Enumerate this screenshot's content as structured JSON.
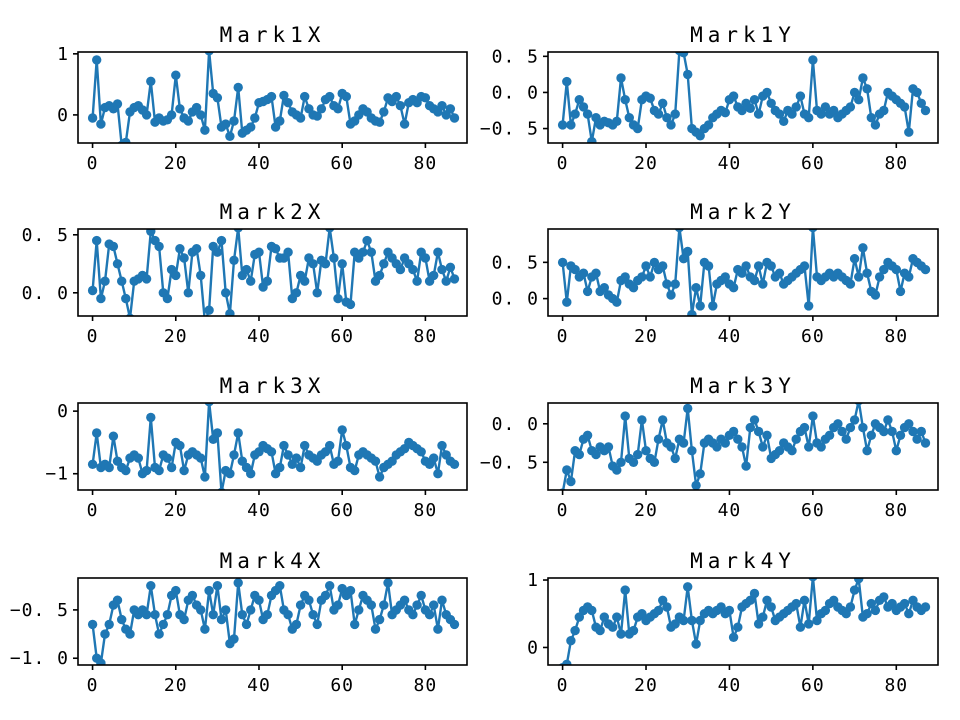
{
  "figure": {
    "background": "#ffffff",
    "series_color": "#1f77b4",
    "frame_color": "#000000",
    "xlim": [
      -3.5,
      90
    ],
    "xtick_values": [
      0,
      20,
      40,
      60,
      80
    ],
    "xtick_labels": [
      "0",
      "20",
      "40",
      "60",
      "80"
    ]
  },
  "chart_data": [
    {
      "type": "line",
      "title": "Mark1X",
      "marker": "circle",
      "color": "#1f77b4",
      "x_start": 0,
      "x_step": 1,
      "ylim": [
        -0.46,
        1.03
      ],
      "ytick_values": [
        1,
        0
      ],
      "ytick_labels": [
        "1",
        "0"
      ],
      "values": [
        -0.05,
        0.9,
        -0.15,
        0.12,
        0.15,
        0.1,
        0.18,
        -0.5,
        -0.45,
        0.05,
        0.12,
        0.15,
        0.08,
        0.0,
        0.55,
        -0.12,
        -0.05,
        -0.1,
        -0.08,
        0.0,
        0.65,
        0.1,
        -0.05,
        -0.1,
        0.05,
        0.12,
        0.0,
        -0.25,
        1.05,
        0.35,
        0.28,
        -0.2,
        -0.15,
        -0.35,
        -0.1,
        0.45,
        -0.3,
        -0.25,
        -0.2,
        -0.05,
        0.2,
        0.22,
        0.25,
        0.3,
        -0.2,
        -0.1,
        0.32,
        0.2,
        0.05,
        0.0,
        -0.05,
        0.3,
        0.1,
        0.0,
        -0.02,
        0.1,
        0.25,
        0.3,
        0.15,
        0.1,
        0.35,
        0.3,
        -0.15,
        -0.1,
        0.0,
        0.1,
        0.05,
        -0.05,
        -0.1,
        -0.12,
        0.05,
        0.28,
        0.22,
        0.3,
        0.15,
        -0.15,
        0.2,
        0.25,
        0.2,
        0.3,
        0.28,
        0.15,
        0.1,
        0.05,
        0.15,
        0.0,
        0.1,
        -0.05
      ]
    },
    {
      "type": "line",
      "title": "Mark1Y",
      "marker": "circle",
      "color": "#1f77b4",
      "x_start": 0,
      "x_step": 1,
      "ylim": [
        -0.7,
        0.56
      ],
      "ytick_values": [
        0.5,
        0.0,
        -0.5
      ],
      "ytick_labels": [
        "0. 5",
        "0. 0",
        "−0. 5"
      ],
      "values": [
        -0.45,
        0.15,
        -0.45,
        -0.3,
        -0.1,
        -0.2,
        -0.3,
        -0.68,
        -0.35,
        -0.45,
        -0.4,
        -0.42,
        -0.45,
        -0.4,
        0.2,
        -0.1,
        -0.35,
        -0.45,
        -0.5,
        -0.1,
        -0.05,
        -0.08,
        -0.25,
        -0.3,
        -0.15,
        -0.35,
        -0.45,
        -0.3,
        0.58,
        0.55,
        0.25,
        -0.5,
        -0.55,
        -0.6,
        -0.5,
        -0.45,
        -0.35,
        -0.3,
        -0.25,
        -0.28,
        -0.1,
        -0.05,
        -0.2,
        -0.25,
        -0.15,
        -0.22,
        -0.1,
        -0.3,
        -0.05,
        0.0,
        -0.15,
        -0.25,
        -0.3,
        -0.4,
        -0.25,
        -0.3,
        -0.2,
        -0.05,
        -0.3,
        -0.35,
        0.45,
        -0.25,
        -0.3,
        -0.2,
        -0.3,
        -0.25,
        -0.35,
        -0.3,
        -0.25,
        -0.2,
        0.0,
        -0.1,
        0.2,
        0.05,
        -0.35,
        -0.45,
        -0.3,
        -0.25,
        0.0,
        -0.05,
        -0.1,
        -0.15,
        -0.2,
        -0.55,
        0.05,
        0.0,
        -0.15,
        -0.25
      ]
    },
    {
      "type": "line",
      "title": "Mark2X",
      "marker": "circle",
      "color": "#1f77b4",
      "x_start": 0,
      "x_step": 1,
      "ylim": [
        -0.2,
        0.55
      ],
      "ytick_values": [
        0.5,
        0.0
      ],
      "ytick_labels": [
        "0. 5",
        "0. 0"
      ],
      "values": [
        0.02,
        0.45,
        -0.05,
        0.1,
        0.42,
        0.4,
        0.25,
        0.1,
        -0.05,
        -0.22,
        0.1,
        0.12,
        0.15,
        0.12,
        0.53,
        0.45,
        0.4,
        0.0,
        -0.05,
        0.2,
        0.15,
        0.38,
        0.3,
        0.0,
        0.35,
        0.38,
        0.15,
        -0.25,
        -0.15,
        0.4,
        0.35,
        0.45,
        0.0,
        -0.18,
        0.28,
        0.56,
        0.15,
        0.2,
        0.1,
        0.33,
        0.35,
        0.05,
        0.1,
        0.4,
        0.38,
        0.3,
        0.3,
        0.35,
        -0.05,
        0.0,
        0.15,
        0.1,
        0.3,
        0.25,
        0.0,
        0.28,
        0.25,
        0.56,
        0.3,
        -0.05,
        0.25,
        -0.08,
        -0.1,
        0.35,
        0.3,
        0.35,
        0.45,
        0.35,
        0.1,
        0.15,
        0.25,
        0.35,
        0.3,
        0.25,
        0.2,
        0.3,
        0.25,
        0.2,
        0.1,
        0.35,
        0.3,
        0.1,
        0.15,
        0.35,
        0.2,
        0.1,
        0.22,
        0.12
      ]
    },
    {
      "type": "line",
      "title": "Mark2Y",
      "marker": "circle",
      "color": "#1f77b4",
      "x_start": 0,
      "x_step": 1,
      "ylim": [
        -0.24,
        0.96
      ],
      "ytick_values": [
        0.5,
        0.0
      ],
      "ytick_labels": [
        "0. 5",
        "0. 0"
      ],
      "values": [
        0.5,
        -0.05,
        0.45,
        0.4,
        0.3,
        0.35,
        0.1,
        0.3,
        0.35,
        0.1,
        0.15,
        0.05,
        0.0,
        -0.05,
        0.25,
        0.3,
        0.2,
        0.15,
        0.25,
        0.3,
        0.45,
        0.3,
        0.5,
        0.4,
        0.45,
        0.2,
        0.05,
        0.2,
        0.98,
        0.55,
        0.65,
        -0.22,
        0.15,
        -0.1,
        0.5,
        0.45,
        -0.1,
        0.2,
        0.25,
        0.3,
        0.2,
        0.15,
        0.4,
        0.35,
        0.45,
        0.3,
        0.25,
        0.45,
        0.2,
        0.5,
        0.45,
        0.3,
        0.35,
        0.2,
        0.25,
        0.3,
        0.35,
        0.4,
        0.45,
        -0.1,
        0.98,
        0.3,
        0.25,
        0.3,
        0.35,
        0.3,
        0.35,
        0.3,
        0.25,
        0.2,
        0.55,
        0.3,
        0.7,
        0.35,
        0.1,
        0.05,
        0.3,
        0.4,
        0.5,
        0.45,
        0.4,
        0.1,
        0.35,
        0.3,
        0.55,
        0.5,
        0.45,
        0.4
      ]
    },
    {
      "type": "line",
      "title": "Mark3X",
      "marker": "circle",
      "color": "#1f77b4",
      "x_start": 0,
      "x_step": 1,
      "ylim": [
        -1.26,
        0.13
      ],
      "ytick_values": [
        0,
        -1
      ],
      "ytick_labels": [
        "0",
        "−1"
      ],
      "values": [
        -0.85,
        -0.35,
        -0.9,
        -0.85,
        -0.9,
        -0.4,
        -0.8,
        -0.9,
        -0.95,
        -0.75,
        -0.7,
        -0.75,
        -1.0,
        -0.95,
        -0.1,
        -0.9,
        -0.95,
        -0.7,
        -0.75,
        -0.9,
        -0.5,
        -0.55,
        -0.95,
        -0.7,
        -0.65,
        -0.7,
        -0.75,
        -1.05,
        0.15,
        -0.45,
        -0.35,
        -1.3,
        -0.95,
        -1.0,
        -0.7,
        -0.35,
        -0.8,
        -0.9,
        -1.0,
        -0.7,
        -0.65,
        -0.55,
        -0.6,
        -0.65,
        -1.0,
        -0.9,
        -0.55,
        -0.7,
        -0.85,
        -0.75,
        -0.9,
        -0.55,
        -0.7,
        -0.75,
        -0.8,
        -0.7,
        -0.65,
        -0.55,
        -0.85,
        -0.8,
        -0.3,
        -0.55,
        -0.9,
        -0.95,
        -0.7,
        -0.65,
        -0.7,
        -0.75,
        -0.8,
        -1.05,
        -0.9,
        -0.85,
        -0.8,
        -0.7,
        -0.65,
        -0.6,
        -0.5,
        -0.55,
        -0.6,
        -0.65,
        -0.8,
        -0.85,
        -0.75,
        -1.0,
        -0.55,
        -0.7,
        -0.8,
        -0.85
      ]
    },
    {
      "type": "line",
      "title": "Mark3Y",
      "marker": "circle",
      "color": "#1f77b4",
      "x_start": 0,
      "x_step": 1,
      "ylim": [
        -0.86,
        0.27
      ],
      "ytick_values": [
        0.0,
        -0.5
      ],
      "ytick_labels": [
        "0. 0",
        "−0. 5"
      ],
      "values": [
        -0.9,
        -0.6,
        -0.75,
        -0.35,
        -0.4,
        -0.2,
        -0.15,
        -0.35,
        -0.4,
        -0.3,
        -0.35,
        -0.3,
        -0.55,
        -0.6,
        -0.5,
        0.1,
        -0.45,
        -0.5,
        -0.4,
        0.05,
        -0.35,
        -0.45,
        -0.5,
        -0.2,
        0.05,
        -0.25,
        -0.3,
        -0.45,
        -0.2,
        -0.25,
        0.2,
        -0.35,
        -0.8,
        -0.65,
        -0.25,
        -0.2,
        -0.25,
        -0.3,
        -0.2,
        -0.25,
        -0.15,
        -0.1,
        -0.2,
        -0.3,
        -0.55,
        -0.05,
        0.05,
        -0.1,
        -0.3,
        -0.15,
        -0.45,
        -0.4,
        -0.35,
        -0.25,
        -0.3,
        -0.35,
        -0.2,
        -0.1,
        -0.05,
        -0.3,
        0.1,
        -0.25,
        -0.3,
        -0.2,
        -0.15,
        -0.05,
        0.0,
        -0.1,
        -0.2,
        -0.05,
        0.05,
        0.3,
        -0.05,
        -0.35,
        -0.15,
        0.0,
        -0.05,
        -0.1,
        0.05,
        -0.1,
        -0.35,
        -0.15,
        -0.05,
        0.0,
        -0.1,
        -0.2,
        -0.1,
        -0.25
      ]
    },
    {
      "type": "line",
      "title": "Mark4X",
      "marker": "circle",
      "color": "#1f77b4",
      "x_start": 0,
      "x_step": 1,
      "ylim": [
        -1.07,
        -0.17
      ],
      "ytick_values": [
        -0.5,
        -1.0
      ],
      "ytick_labels": [
        "−0. 5",
        "−1. 0"
      ],
      "values": [
        -0.65,
        -1.0,
        -1.05,
        -0.75,
        -0.65,
        -0.45,
        -0.4,
        -0.6,
        -0.7,
        -0.75,
        -0.5,
        -0.55,
        -0.5,
        -0.55,
        -0.25,
        -0.55,
        -0.75,
        -0.65,
        -0.55,
        -0.35,
        -0.3,
        -0.55,
        -0.6,
        -0.4,
        -0.35,
        -0.45,
        -0.5,
        -0.7,
        -0.3,
        -0.55,
        -0.25,
        -0.6,
        -0.5,
        -0.85,
        -0.8,
        -0.22,
        -0.55,
        -0.65,
        -0.5,
        -0.35,
        -0.4,
        -0.6,
        -0.55,
        -0.35,
        -0.3,
        -0.25,
        -0.5,
        -0.55,
        -0.7,
        -0.65,
        -0.45,
        -0.35,
        -0.4,
        -0.55,
        -0.65,
        -0.4,
        -0.35,
        -0.25,
        -0.5,
        -0.45,
        -0.28,
        -0.35,
        -0.3,
        -0.65,
        -0.5,
        -0.35,
        -0.4,
        -0.45,
        -0.7,
        -0.6,
        -0.45,
        -0.22,
        -0.55,
        -0.5,
        -0.45,
        -0.4,
        -0.5,
        -0.55,
        -0.45,
        -0.35,
        -0.5,
        -0.55,
        -0.45,
        -0.7,
        -0.4,
        -0.55,
        -0.6,
        -0.65
      ]
    },
    {
      "type": "line",
      "title": "Mark4Y",
      "marker": "circle",
      "color": "#1f77b4",
      "x_start": 0,
      "x_step": 1,
      "ylim": [
        -0.26,
        1.03
      ],
      "ytick_values": [
        1,
        0
      ],
      "ytick_labels": [
        "1",
        "0"
      ],
      "values": [
        -0.3,
        -0.25,
        0.1,
        0.25,
        0.45,
        0.55,
        0.6,
        0.55,
        0.3,
        0.25,
        0.45,
        0.35,
        0.3,
        0.45,
        0.2,
        0.85,
        0.2,
        0.25,
        0.45,
        0.5,
        0.4,
        0.45,
        0.5,
        0.55,
        0.7,
        0.6,
        0.3,
        0.35,
        0.45,
        0.4,
        0.9,
        0.4,
        0.05,
        0.4,
        0.5,
        0.55,
        0.5,
        0.55,
        0.6,
        0.5,
        0.55,
        0.15,
        0.3,
        0.6,
        0.65,
        0.7,
        0.8,
        0.35,
        0.45,
        0.7,
        0.6,
        0.4,
        0.45,
        0.5,
        0.55,
        0.6,
        0.65,
        0.3,
        0.7,
        0.35,
        1.05,
        0.4,
        0.5,
        0.55,
        0.65,
        0.7,
        0.6,
        0.55,
        0.5,
        0.6,
        0.85,
        1.02,
        0.45,
        0.5,
        0.65,
        0.55,
        0.7,
        0.75,
        0.6,
        0.65,
        0.55,
        0.6,
        0.65,
        0.5,
        0.7,
        0.6,
        0.55,
        0.6
      ]
    }
  ]
}
